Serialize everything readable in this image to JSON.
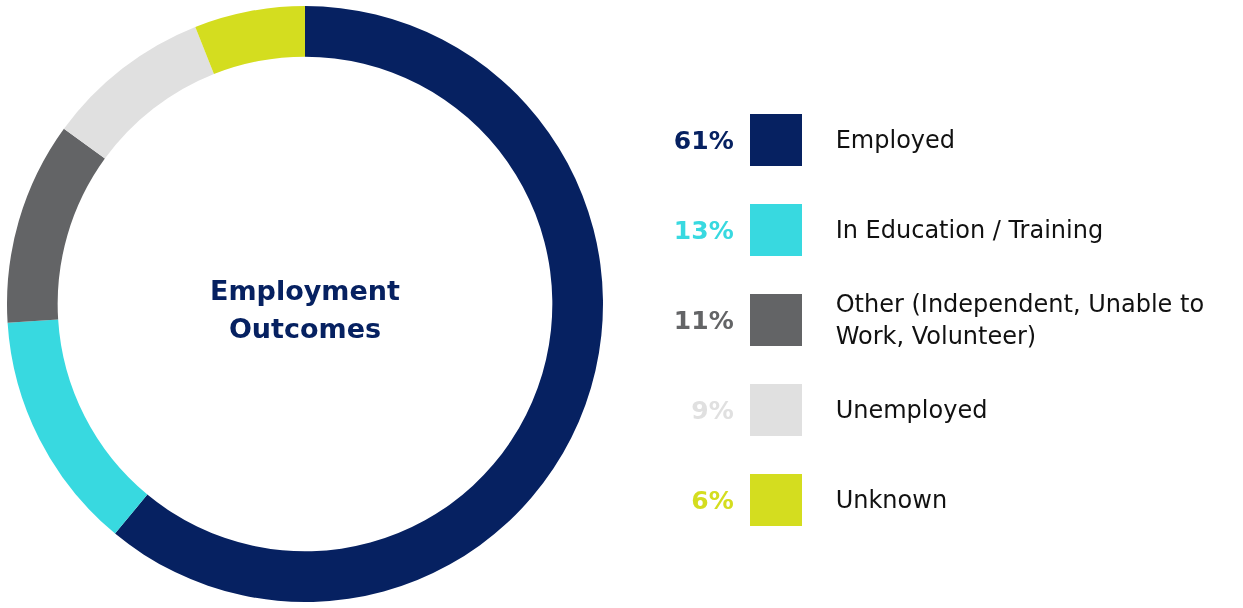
{
  "chart_data": {
    "type": "donut",
    "title": "Employment Outcomes",
    "categories": [
      "Employed",
      "In Education / Training",
      "Other (Independent, Unable to Work, Volunteer)",
      "Unemployed",
      "Unknown"
    ],
    "values": [
      61,
      13,
      11,
      9,
      6
    ],
    "colors": [
      "#062161",
      "#38d9e0",
      "#636466",
      "#e0e0e0",
      "#d4dd1f"
    ],
    "value_labels": [
      "61%",
      "13%",
      "11%",
      "9%",
      "6%"
    ],
    "legend": "right"
  }
}
